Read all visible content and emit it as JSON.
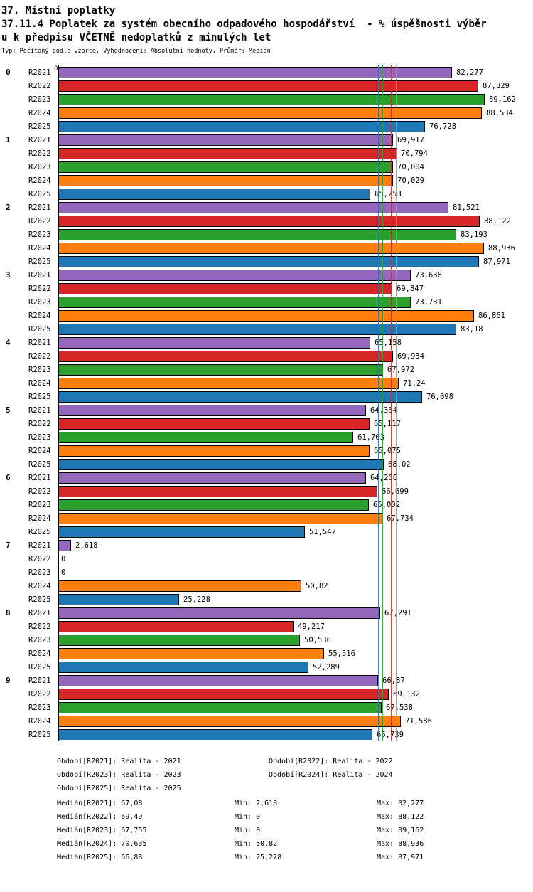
{
  "header": {
    "title": "37. Místní poplatky",
    "subtitle_line1": "37.11.4 Poplatek za systém obecního odpadového hospodářství  - % úspěšnosti výběr",
    "subtitle_line2": "u k předpisu VČETNĚ nedoplatků z minulých let",
    "meta": "Typ: Počítaný podle vzorce, Vyhodnocení: Absolutní hodnoty, Průměr: Medián"
  },
  "chart_data": {
    "type": "bar",
    "orientation": "horizontal",
    "x_axis_zero_label": "0",
    "xlim": [
      0,
      95
    ],
    "grid": false,
    "groups": [
      "0",
      "1",
      "2",
      "3",
      "4",
      "5",
      "6",
      "7",
      "8",
      "9"
    ],
    "series": [
      {
        "name": "R2021",
        "color": "#9467bd",
        "values": [
          82.277,
          69.917,
          81.521,
          73.638,
          65.158,
          64.364,
          64.268,
          2.618,
          67.291,
          66.87
        ],
        "value_labels": [
          "82,277",
          "69,917",
          "81,521",
          "73,638",
          "65,158",
          "64,364",
          "64,268",
          "2,618",
          "67,291",
          "66,87"
        ],
        "median": 67.08
      },
      {
        "name": "R2022",
        "color": "#d62728",
        "values": [
          87.829,
          70.794,
          88.122,
          69.847,
          69.934,
          65.117,
          66.699,
          0,
          49.217,
          69.132
        ],
        "value_labels": [
          "87,829",
          "70,794",
          "88,122",
          "69,847",
          "69,934",
          "65,117",
          "66,699",
          "0",
          "49,217",
          "69,132"
        ],
        "median": 69.49
      },
      {
        "name": "R2023",
        "color": "#2ca02c",
        "values": [
          89.162,
          70.004,
          83.193,
          73.731,
          67.972,
          61.703,
          65.002,
          0,
          50.536,
          67.538
        ],
        "value_labels": [
          "89,162",
          "70,004",
          "83,193",
          "73,731",
          "67,972",
          "61,703",
          "65,002",
          "0",
          "50,536",
          "67,538"
        ],
        "median": 67.755
      },
      {
        "name": "R2024",
        "color": "#ff7f0e",
        "values": [
          88.534,
          70.029,
          88.936,
          86.861,
          71.24,
          65.075,
          67.734,
          50.82,
          55.516,
          71.586
        ],
        "value_labels": [
          "88,534",
          "70,029",
          "88,936",
          "86,861",
          "71,24",
          "65,075",
          "67,734",
          "50,82",
          "55,516",
          "71,586"
        ],
        "median": 70.635
      },
      {
        "name": "R2025",
        "color": "#1f77b4",
        "values": [
          76.728,
          65.253,
          87.971,
          83.18,
          76.098,
          68.02,
          51.547,
          25.228,
          52.289,
          65.739
        ],
        "value_labels": [
          "76,728",
          "65,253",
          "87,971",
          "83,18",
          "76,098",
          "68,02",
          "51,547",
          "25,228",
          "52,289",
          "65,739"
        ],
        "median": 66.88
      }
    ]
  },
  "legend": {
    "items": [
      "Období[R2021]: Realita - 2021",
      "Období[R2022]: Realita - 2022",
      "Období[R2023]: Realita - 2023",
      "Období[R2024]: Realita - 2024",
      "Období[R2025]: Realita - 2025"
    ]
  },
  "stats": {
    "rows": [
      {
        "median": "Medián[R2021]: 67,08",
        "min": "Min: 2,618",
        "max": "Max: 82,277"
      },
      {
        "median": "Medián[R2022]: 69,49",
        "min": "Min: 0",
        "max": "Max: 88,122"
      },
      {
        "median": "Medián[R2023]: 67,755",
        "min": "Min: 0",
        "max": "Max: 89,162"
      },
      {
        "median": "Medián[R2024]: 70,635",
        "min": "Min: 50,82",
        "max": "Max: 88,936"
      },
      {
        "median": "Medián[R2025]: 66,88",
        "min": "Min: 25,228",
        "max": "Max: 87,971"
      }
    ]
  }
}
